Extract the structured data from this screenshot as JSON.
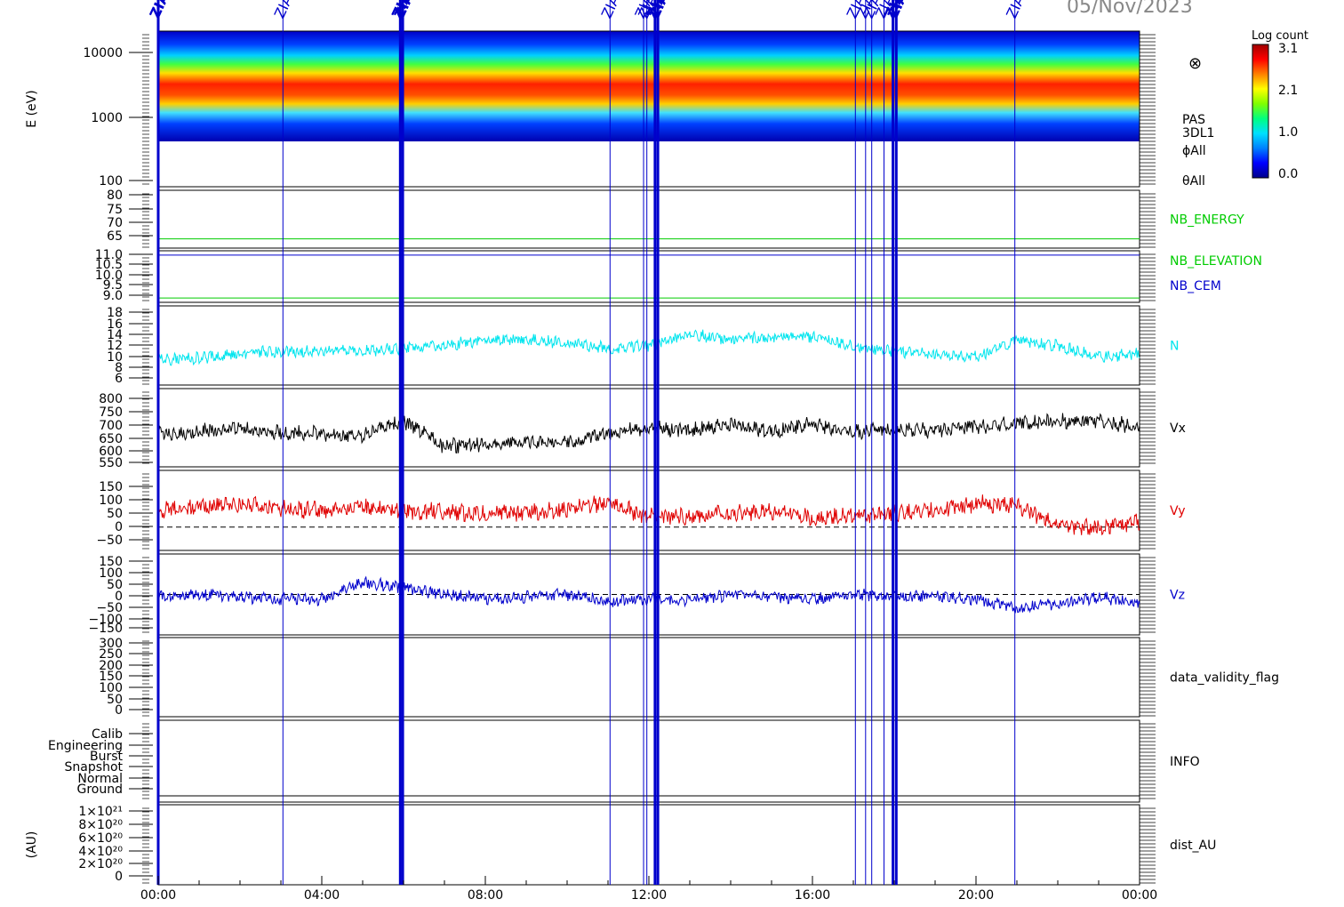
{
  "header": {
    "date": "05/Nov/2023"
  },
  "marker_label": "ZIAS",
  "colorbar": {
    "title": "Log count",
    "ticks": [
      "3.1",
      "2.1",
      "1.0",
      "0.0"
    ],
    "stops": [
      "#00008b",
      "#0000ff",
      "#0080ff",
      "#00e0ff",
      "#00ff80",
      "#80ff00",
      "#ffff00",
      "#ff8000",
      "#ff0000",
      "#a00000"
    ]
  },
  "x_axis": {
    "ticks": [
      "00:00",
      "04:00",
      "08:00",
      "12:00",
      "16:00",
      "20:00",
      "00:00"
    ],
    "range_hours": [
      0,
      24
    ]
  },
  "markers_hours": [
    {
      "t": 0.0,
      "bold": true
    },
    {
      "t": 3.05,
      "bold": false
    },
    {
      "t": 5.92,
      "bold": true
    },
    {
      "t": 5.98,
      "bold": true
    },
    {
      "t": 11.05,
      "bold": false
    },
    {
      "t": 11.87,
      "bold": false
    },
    {
      "t": 11.95,
      "bold": false
    },
    {
      "t": 12.15,
      "bold": true
    },
    {
      "t": 12.22,
      "bold": true
    },
    {
      "t": 17.05,
      "bold": false
    },
    {
      "t": 17.3,
      "bold": false
    },
    {
      "t": 17.45,
      "bold": false
    },
    {
      "t": 17.75,
      "bold": false
    },
    {
      "t": 17.97,
      "bold": true
    },
    {
      "t": 18.05,
      "bold": true
    },
    {
      "t": 20.95,
      "bold": false
    }
  ],
  "panels": [
    {
      "id": "spectrogram",
      "ylabel": "E (eV)",
      "ticks": [
        "10000",
        "1000",
        "100"
      ],
      "right_labels": [
        "PAS",
        "3DL1",
        "ϕAll",
        "θAll"
      ],
      "right_color": "#000000"
    },
    {
      "id": "nb",
      "ticks": [
        "80",
        "75",
        "70",
        "65"
      ],
      "right_labels": [
        "NB_ENERGY"
      ],
      "right_color": "#00cc00"
    },
    {
      "id": "elev",
      "ticks": [
        "11.0",
        "10.5",
        "10.0",
        "9.5",
        "9.0"
      ],
      "right_labels": [
        "NB_ELEVATION",
        "NB_CEM"
      ],
      "right_colors": [
        "#00cc00",
        "#0000cc"
      ]
    },
    {
      "id": "n",
      "ticks": [
        "18",
        "16",
        "14",
        "12",
        "10",
        "8",
        "6"
      ],
      "right_labels": [
        "N"
      ],
      "right_color": "#00e5ee"
    },
    {
      "id": "vx",
      "ticks": [
        "800",
        "750",
        "700",
        "650",
        "600",
        "550"
      ],
      "right_labels": [
        "Vx"
      ],
      "right_color": "#000000"
    },
    {
      "id": "vy",
      "ticks": [
        "150",
        "100",
        "50",
        "0",
        "−50"
      ],
      "right_labels": [
        "Vy"
      ],
      "right_color": "#e00000"
    },
    {
      "id": "vz",
      "ticks": [
        "150",
        "100",
        "50",
        "0",
        "−50",
        "−100",
        "−150"
      ],
      "right_labels": [
        "Vz"
      ],
      "right_color": "#0000cc"
    },
    {
      "id": "validity",
      "ticks": [
        "300",
        "250",
        "200",
        "150",
        "100",
        "50",
        "0"
      ],
      "right_labels": [
        "data_validity_flag"
      ],
      "right_color": "#000000"
    },
    {
      "id": "info",
      "ticks": [
        "Calib",
        "Engineering",
        "Burst",
        "Snapshot",
        "Normal",
        "Ground"
      ],
      "right_labels": [
        "INFO"
      ],
      "right_color": "#000000"
    },
    {
      "id": "dist",
      "ylabel": "(AU)",
      "ticks": [
        "1×10²¹",
        "8×10²⁰",
        "6×10²⁰",
        "4×10²⁰",
        "2×10²⁰",
        "0"
      ],
      "right_labels": [
        "dist_AU"
      ],
      "right_color": "#000000"
    }
  ],
  "chart_data": [
    {
      "type": "heatmap",
      "title": "",
      "ylabel": "E (eV)",
      "yscale": "log",
      "ylim": [
        100,
        20000
      ],
      "z_label": "Log count",
      "zlim": [
        0.0,
        3.1
      ],
      "description_values": {
        "peak_energy_eV": 2000,
        "band_low_eV": 500,
        "band_high_eV": 12000
      }
    },
    {
      "type": "line",
      "series": [
        {
          "name": "NB_ENERGY",
          "values_constant": 63.5
        }
      ],
      "ylim": [
        60,
        82
      ]
    },
    {
      "type": "line",
      "series": [
        {
          "name": "NB_ELEVATION",
          "values_constant": 9.0
        },
        {
          "name": "NB_CEM",
          "values_constant": 11.0
        }
      ],
      "ylim": [
        8.8,
        11.2
      ]
    },
    {
      "type": "line",
      "series": [
        {
          "name": "N",
          "x_hours": [
            0,
            1,
            2,
            3,
            4,
            5,
            6,
            7,
            8,
            9,
            10,
            11,
            12,
            13,
            14,
            15,
            16,
            17,
            18,
            19,
            20,
            21,
            22,
            23,
            24
          ],
          "values": [
            9.5,
            9.8,
            10.5,
            11,
            11,
            11,
            11.5,
            12,
            13,
            13,
            12.5,
            11.5,
            12,
            14,
            13,
            13.5,
            13.5,
            12,
            11,
            10.5,
            10,
            13,
            12,
            10,
            10.5
          ]
        }
      ],
      "ylim": [
        5,
        19
      ]
    },
    {
      "type": "line",
      "series": [
        {
          "name": "Vx",
          "x_hours": [
            0,
            1,
            2,
            3,
            4,
            5,
            6,
            7,
            8,
            9,
            10,
            11,
            12,
            13,
            14,
            15,
            16,
            17,
            18,
            19,
            20,
            21,
            22,
            23,
            24
          ],
          "values": [
            650,
            665,
            675,
            660,
            655,
            645,
            700,
            610,
            620,
            630,
            625,
            660,
            675,
            665,
            690,
            660,
            690,
            660,
            670,
            665,
            680,
            690,
            700,
            695,
            680
          ]
        }
      ],
      "ylim": [
        540,
        810
      ]
    },
    {
      "type": "line",
      "series": [
        {
          "name": "Vy",
          "x_hours": [
            0,
            1,
            2,
            3,
            4,
            5,
            6,
            7,
            8,
            9,
            10,
            11,
            12,
            13,
            14,
            15,
            16,
            17,
            18,
            19,
            20,
            21,
            22,
            23,
            24
          ],
          "values": [
            50,
            60,
            70,
            55,
            50,
            60,
            50,
            45,
            40,
            45,
            55,
            75,
            30,
            35,
            40,
            45,
            30,
            30,
            40,
            50,
            70,
            65,
            5,
            0,
            15
          ]
        }
      ],
      "ylim": [
        -70,
        170
      ]
    },
    {
      "type": "line",
      "series": [
        {
          "name": "Vz",
          "x_hours": [
            0,
            1,
            2,
            3,
            4,
            5,
            6,
            7,
            8,
            9,
            10,
            11,
            12,
            13,
            14,
            15,
            16,
            17,
            18,
            19,
            20,
            21,
            22,
            23,
            24
          ],
          "values": [
            -10,
            0,
            -10,
            -20,
            -20,
            50,
            30,
            0,
            -20,
            -10,
            0,
            -30,
            -20,
            -20,
            0,
            -10,
            -20,
            0,
            -10,
            -10,
            -20,
            -60,
            -40,
            -10,
            -40
          ]
        }
      ],
      "ylim": [
        -170,
        170
      ]
    },
    {
      "type": "line",
      "series": [],
      "ylim": [
        0,
        300
      ]
    },
    {
      "type": "line",
      "series": [],
      "categories": [
        "Ground",
        "Normal",
        "Snapshot",
        "Burst",
        "Engineering",
        "Calib"
      ]
    },
    {
      "type": "line",
      "series": [
        {
          "name": "dist_AU",
          "values_constant": 0
        }
      ],
      "ylim": [
        0,
        1.1e+21
      ]
    }
  ]
}
